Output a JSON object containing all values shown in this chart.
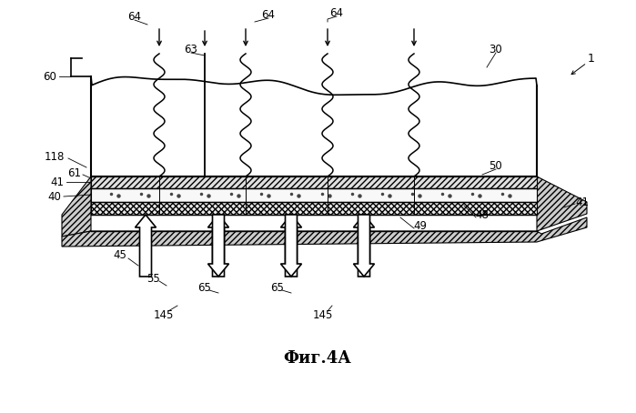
{
  "title": "Фиг.4А",
  "bg": "#ffffff",
  "fw": 6.99,
  "fh": 4.54,
  "dpi": 100
}
